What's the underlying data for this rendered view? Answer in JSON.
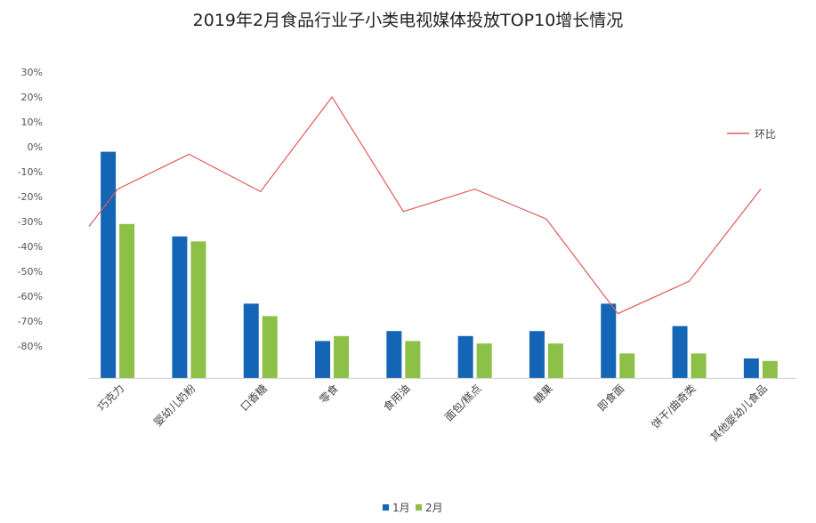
{
  "chart_data": {
    "type": "bar",
    "title": "2019年2月食品行业子小类电视媒体投放TOP10增长情况",
    "categories": [
      "巧克力",
      "婴幼儿奶粉",
      "口香糖",
      "零食",
      "食用油",
      "面包/糕点",
      "糖果",
      "即食面",
      "饼干/曲奇类",
      "其他婴幼儿食品"
    ],
    "series": [
      {
        "name": "1月",
        "kind": "bar",
        "color": "#1565b6",
        "values": [
          -2,
          -36,
          -63,
          -78,
          -74,
          -76,
          -74,
          -63,
          -72,
          -85
        ]
      },
      {
        "name": "2月",
        "kind": "bar",
        "color": "#8cc046",
        "values": [
          -31,
          -38,
          -68,
          -76,
          -78,
          -79,
          -79,
          -83,
          -83,
          -86
        ]
      },
      {
        "name": "环比",
        "kind": "line",
        "color": "#e05a5a",
        "values": [
          -17,
          -3,
          -18,
          20,
          -26,
          -17,
          -29,
          -67,
          -54,
          -17
        ]
      }
    ],
    "yticks": [
      30,
      20,
      10,
      0,
      -10,
      -20,
      -30,
      -40,
      -50,
      -60,
      -70,
      -80
    ],
    "ytick_labels": [
      "30%",
      "20%",
      "10%",
      "0%",
      "-10%",
      "-20%",
      "-30%",
      "-40%",
      "-50%",
      "-60%",
      "-70%",
      "-80%"
    ],
    "ylim": [
      -93,
      30
    ],
    "line_start_value": -32,
    "line_end_value": -16,
    "legend_bottom": [
      "1月",
      "2月"
    ],
    "legend_line_label": "环比",
    "grid": false
  }
}
